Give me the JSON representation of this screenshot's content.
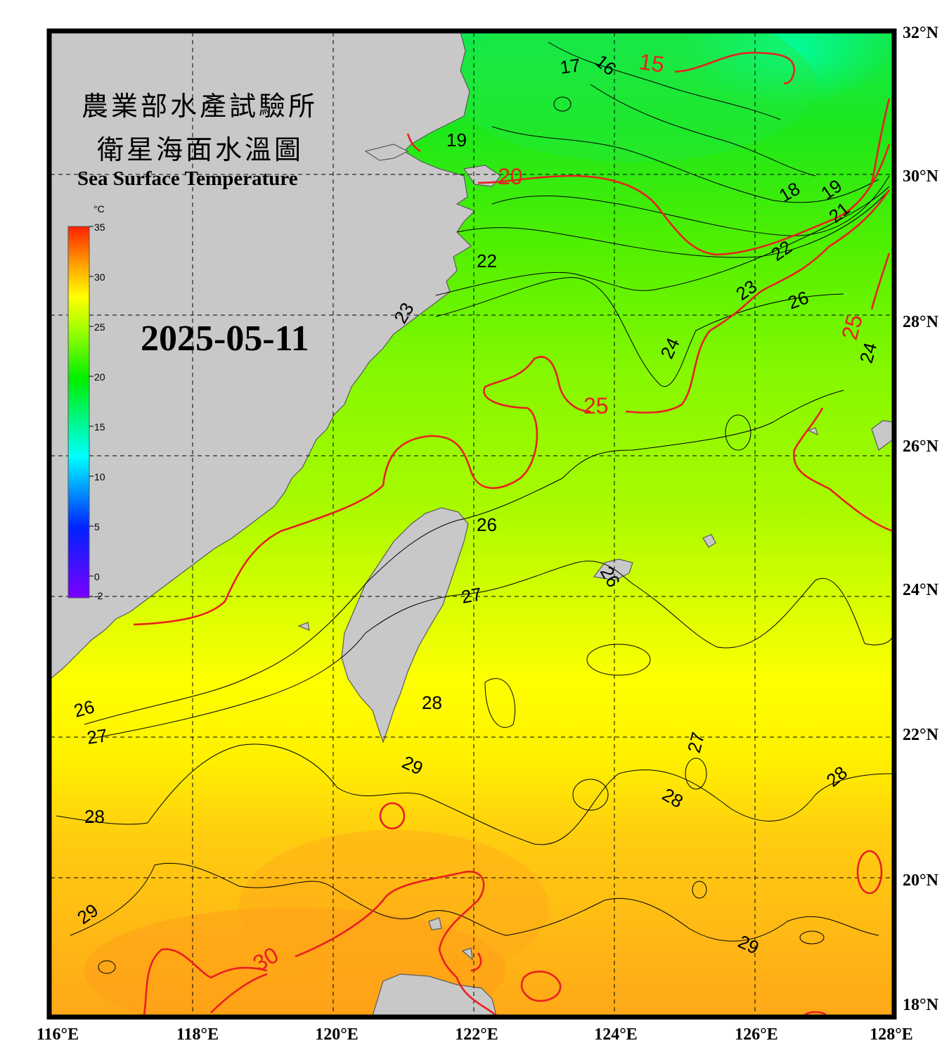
{
  "title": {
    "line1": "農業部水產試驗所",
    "line2": "衛星海面水溫圖",
    "english": "Sea Surface Temperature"
  },
  "date": "2025-05-11",
  "colorbar": {
    "unit": "°C",
    "ticks": [
      "35",
      "30",
      "25",
      "20",
      "15",
      "10",
      "5",
      "0",
      "-2"
    ],
    "stops": [
      {
        "value": -2,
        "color": "#7a00ff"
      },
      {
        "value": 5,
        "color": "#0022ff"
      },
      {
        "value": 12,
        "color": "#00ffff"
      },
      {
        "value": 20,
        "color": "#00ee00"
      },
      {
        "value": 25,
        "color": "#aaff00"
      },
      {
        "value": 28,
        "color": "#ffff00"
      },
      {
        "value": 31,
        "color": "#ffaa00"
      },
      {
        "value": 35,
        "color": "#ff2000"
      }
    ]
  },
  "axes": {
    "x_labels": [
      "116°E",
      "118°E",
      "120°E",
      "122°E",
      "124°E",
      "126°E",
      "128°E"
    ],
    "y_labels": [
      "32°N",
      "30°N",
      "28°N",
      "26°N",
      "24°N",
      "22°N",
      "20°N",
      "18°N"
    ],
    "lon_range": [
      116,
      128
    ],
    "lat_range": [
      18,
      32
    ]
  },
  "contour_labels": [
    "15",
    "16",
    "17",
    "18",
    "19",
    "20",
    "21",
    "22",
    "23",
    "24",
    "25",
    "26",
    "27",
    "28",
    "29",
    "30"
  ],
  "colors": {
    "land": "#c8c8c8",
    "frame": "#000000",
    "major_contour": "#e82020",
    "minor_contour": "#000000"
  }
}
